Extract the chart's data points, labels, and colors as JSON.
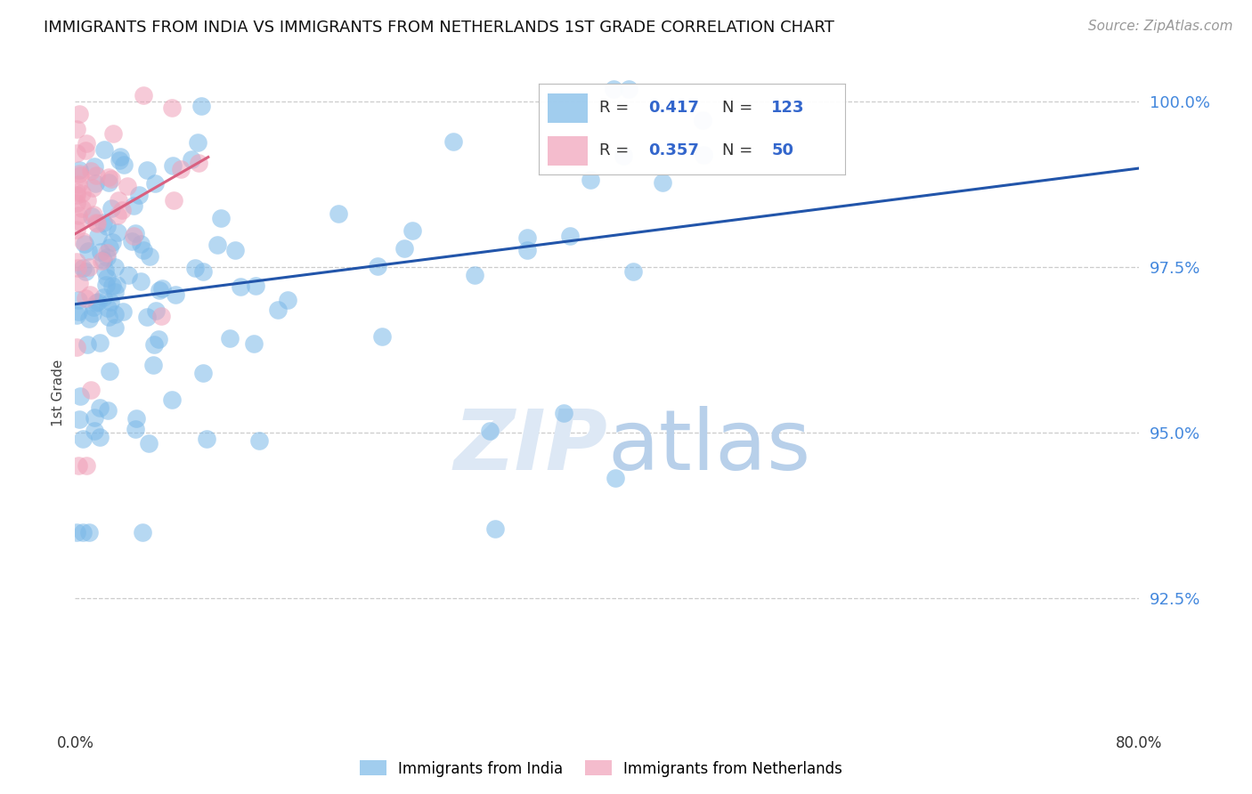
{
  "title": "IMMIGRANTS FROM INDIA VS IMMIGRANTS FROM NETHERLANDS 1ST GRADE CORRELATION CHART",
  "source": "Source: ZipAtlas.com",
  "ylabel": "1st Grade",
  "india_R": 0.417,
  "india_N": 123,
  "netherlands_R": 0.357,
  "netherlands_N": 50,
  "india_color": "#7ab8e8",
  "netherlands_color": "#f0a0b8",
  "india_line_color": "#2255aa",
  "netherlands_line_color": "#d96080",
  "legend_label_india": "Immigrants from India",
  "legend_label_netherlands": "Immigrants from Netherlands",
  "xlim": [
    0.0,
    0.8
  ],
  "ylim": [
    0.905,
    1.007
  ],
  "ytick_values": [
    0.925,
    0.95,
    0.975,
    1.0
  ],
  "ytick_labels": [
    "92.5%",
    "95.0%",
    "97.5%",
    "100.0%"
  ],
  "grid_color": "#cccccc",
  "background_color": "#ffffff"
}
